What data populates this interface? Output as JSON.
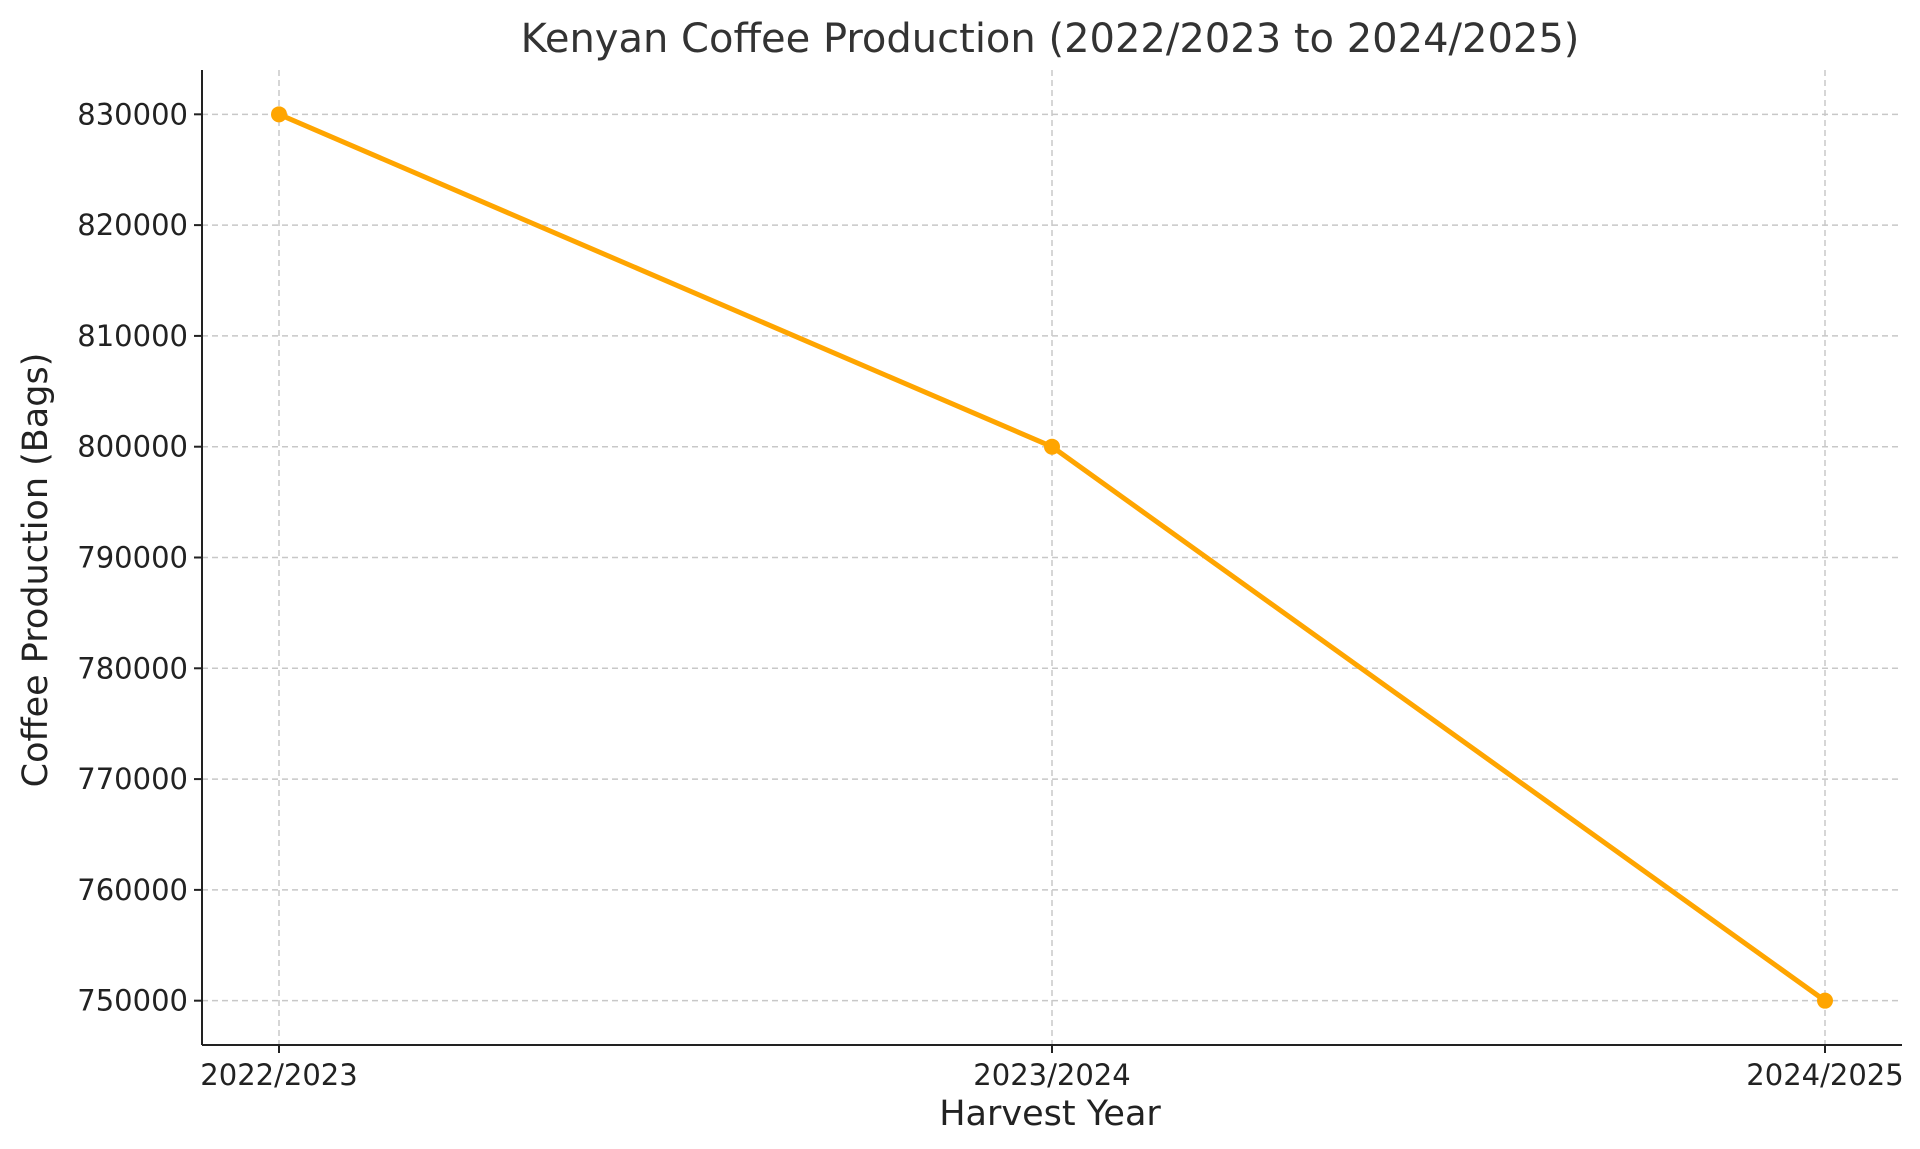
{
  "chart_data": {
    "type": "line",
    "title": "Kenyan Coffee Production (2022/2023 to 2024/2025)",
    "xlabel": "Harvest Year",
    "ylabel": "Coffee Production (Bags)",
    "categories": [
      "2022/2023",
      "2023/2024",
      "2024/2025"
    ],
    "series": [
      {
        "values": [
          830000,
          800000,
          750000
        ],
        "color": "#FFA500"
      }
    ],
    "yticks": [
      750000,
      760000,
      770000,
      780000,
      790000,
      800000,
      810000,
      820000,
      830000
    ],
    "ylim": [
      746000,
      834000
    ],
    "grid": true,
    "marker": "circle"
  }
}
